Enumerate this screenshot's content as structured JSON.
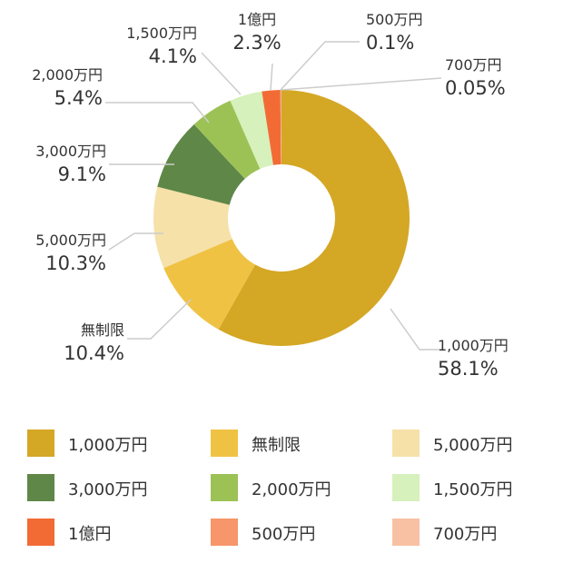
{
  "chart_data": {
    "type": "pie",
    "title": "",
    "donut": true,
    "categories": [
      "1,000万円",
      "無制限",
      "5,000万円",
      "3,000万円",
      "2,000万円",
      "1,500万円",
      "1億円",
      "500万円",
      "700万円"
    ],
    "values": [
      58.1,
      10.4,
      10.3,
      9.1,
      5.4,
      4.1,
      2.3,
      0.1,
      0.05
    ],
    "value_labels": [
      "58.1%",
      "10.4%",
      "10.3%",
      "9.1%",
      "5.4%",
      "4.1%",
      "2.3%",
      "0.1%",
      "0.05%"
    ],
    "colors": [
      "#d4a725",
      "#f0c244",
      "#f6e1a9",
      "#5f8747",
      "#9cc256",
      "#d6f1bb",
      "#f26b35",
      "#f6966a",
      "#f8c1a4"
    ],
    "legend": {
      "placement": "bottom",
      "entries": [
        "1,000万円",
        "無制限",
        "5,000万円",
        "3,000万円",
        "2,000万円",
        "1,500万円",
        "1億円",
        "500万円",
        "700万円"
      ]
    }
  }
}
